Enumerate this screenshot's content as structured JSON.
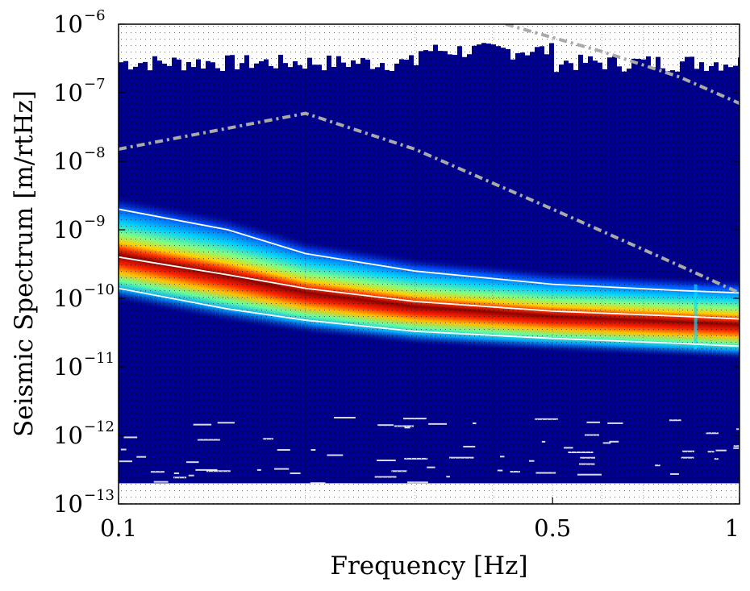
{
  "chart_data": {
    "type": "heatmap",
    "title": "",
    "xlabel": "Frequency [Hz]",
    "ylabel": "Seismic Spectrum [m/rtHz]",
    "x_scale": "log",
    "y_scale": "log",
    "xlim": [
      0.1,
      1
    ],
    "ylim": [
      1e-13,
      1e-06
    ],
    "x_ticks": [
      {
        "value": 0.1,
        "label": "0.1"
      },
      {
        "value": 0.5,
        "label": "0.5"
      },
      {
        "value": 1,
        "label": "1"
      }
    ],
    "y_ticks": [
      {
        "value": 1e-13,
        "mantissa": "10",
        "exponent": "−13"
      },
      {
        "value": 1e-12,
        "mantissa": "10",
        "exponent": "−12"
      },
      {
        "value": 1e-11,
        "mantissa": "10",
        "exponent": "−11"
      },
      {
        "value": 1e-10,
        "mantissa": "10",
        "exponent": "−10"
      },
      {
        "value": 1e-09,
        "mantissa": "10",
        "exponent": "−9"
      },
      {
        "value": 1e-08,
        "mantissa": "10",
        "exponent": "−8"
      },
      {
        "value": 1e-07,
        "mantissa": "10",
        "exponent": "−7"
      },
      {
        "value": 1e-06,
        "mantissa": "10",
        "exponent": "−6"
      }
    ],
    "grid": true,
    "colormap": "jet",
    "colors": {
      "background_low": "#00008f",
      "peak": "#800000",
      "percentile_lines": "#ffffff",
      "model_lines": "#aaaaaa"
    },
    "upper_percentile": {
      "x": [
        0.1,
        0.15,
        0.2,
        0.3,
        0.5,
        0.8,
        1.0
      ],
      "y": [
        2e-09,
        1e-09,
        4.5e-10,
        2.5e-10,
        1.6e-10,
        1.3e-10,
        1.2e-10
      ]
    },
    "median": {
      "x": [
        0.1,
        0.15,
        0.2,
        0.3,
        0.5,
        0.8,
        1.0
      ],
      "y": [
        4e-10,
        2.2e-10,
        1.4e-10,
        9e-11,
        6.5e-11,
        5.5e-11,
        5e-11
      ]
    },
    "lower_percentile": {
      "x": [
        0.1,
        0.15,
        0.2,
        0.3,
        0.5,
        0.8,
        1.0
      ],
      "y": [
        1.4e-10,
        7e-11,
        4.8e-11,
        3.3e-11,
        2.6e-11,
        2.2e-11,
        2e-11
      ]
    },
    "high_noise_model": {
      "x": [
        0.1,
        0.2,
        0.3,
        0.5,
        0.8,
        1.0
      ],
      "y": [
        1.5e-08,
        5e-08,
        1.5e-08,
        2e-09,
        3e-10,
        1.2e-10
      ]
    },
    "upper_model": {
      "x": [
        0.42,
        0.6,
        0.8,
        1.0
      ],
      "y": [
        1e-06,
        4e-07,
        1.7e-07,
        7e-08
      ]
    },
    "resonance_frequency_hz": 0.85
  }
}
